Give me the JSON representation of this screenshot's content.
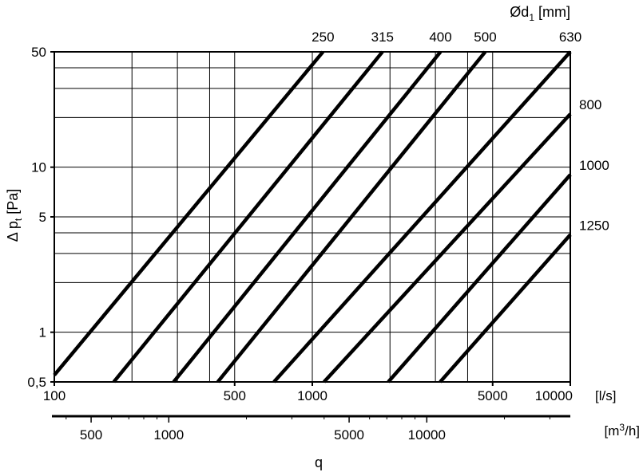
{
  "chart_data": {
    "type": "line",
    "title": "",
    "x_scale": "log",
    "y_scale": "log",
    "xlim": [
      100,
      10000
    ],
    "ylim": [
      0.5,
      50
    ],
    "grid": true,
    "legend": "labels at line ends (top and right)",
    "line_color": "#000000",
    "diameter_label_prefix": "Ød",
    "diameter_label_sub": "1",
    "diameter_label_unit": " [mm]",
    "ylabel_prefix": "Δ p",
    "ylabel_sub": "t",
    "ylabel_unit": " [Pa]",
    "xlabel": "q",
    "x_unit_ls": "[l/s]",
    "x_unit_m3h_prefix": "[m",
    "x_unit_m3h_sup": "3",
    "x_unit_m3h_suffix": "/h]",
    "y_ticks": [
      {
        "value": 50,
        "label": "50"
      },
      {
        "value": 10,
        "label": "10"
      },
      {
        "value": 5,
        "label": "5"
      },
      {
        "value": 1,
        "label": "1"
      },
      {
        "value": 0.5,
        "label": "0,5"
      }
    ],
    "y_gridlines": [
      0.5,
      1,
      2,
      3,
      4,
      5,
      10,
      20,
      30,
      40,
      50
    ],
    "x_ticks": [
      {
        "value": 100,
        "label": "100"
      },
      {
        "value": 500,
        "label": "500"
      },
      {
        "value": 1000,
        "label": "1000"
      },
      {
        "value": 5000,
        "label": "5000"
      },
      {
        "value": 10000,
        "label": "10000"
      }
    ],
    "x_gridlines": [
      100,
      200,
      300,
      400,
      500,
      1000,
      2000,
      3000,
      4000,
      5000,
      10000
    ],
    "m3h_ticks": [
      {
        "value": 500,
        "label": "500"
      },
      {
        "value": 1000,
        "label": "1000"
      },
      {
        "value": 5000,
        "label": "5000"
      },
      {
        "value": 10000,
        "label": "10000"
      }
    ],
    "m3h_minor_ticks": [
      400,
      600,
      700,
      800,
      900,
      2000,
      3000,
      4000,
      6000,
      7000,
      8000,
      9000,
      20000,
      30000
    ],
    "m3h_range": [
      360,
      36000
    ],
    "series": [
      {
        "name": "250",
        "points": [
          [
            100,
            0.55
          ],
          [
            1100,
            50
          ]
        ]
      },
      {
        "name": "315",
        "points": [
          [
            170,
            0.5
          ],
          [
            1870,
            50
          ]
        ]
      },
      {
        "name": "400",
        "points": [
          [
            290,
            0.5
          ],
          [
            3140,
            50
          ]
        ]
      },
      {
        "name": "500",
        "points": [
          [
            430,
            0.5
          ],
          [
            4680,
            50
          ]
        ]
      },
      {
        "name": "630",
        "points": [
          [
            710,
            0.5
          ],
          [
            10000,
            50
          ]
        ]
      },
      {
        "name": "800",
        "points": [
          [
            1110,
            0.5
          ],
          [
            10000,
            21
          ]
        ]
      },
      {
        "name": "1000",
        "points": [
          [
            1970,
            0.5
          ],
          [
            10000,
            9
          ]
        ]
      },
      {
        "name": "1250",
        "points": [
          [
            3130,
            0.5
          ],
          [
            10000,
            3.9
          ]
        ]
      }
    ]
  }
}
